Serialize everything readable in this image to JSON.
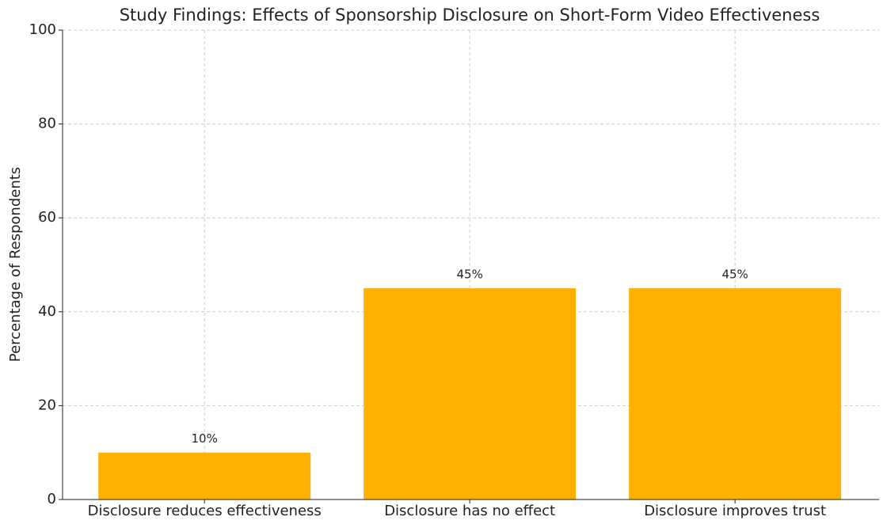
{
  "chart_data": {
    "type": "bar",
    "title": "Study Findings: Effects of Sponsorship Disclosure on Short-Form Video Effectiveness",
    "y_label": "Percentage of Respondents",
    "categories": [
      "Disclosure reduces effectiveness",
      "Disclosure has no effect",
      "Disclosure improves trust"
    ],
    "values": [
      10,
      45,
      45
    ],
    "value_labels": [
      "10%",
      "45%",
      "45%"
    ],
    "color": "#ffb000",
    "ylim": [
      0,
      100
    ],
    "yticks": [
      0,
      20,
      40,
      60,
      80,
      100
    ],
    "grid": true
  }
}
